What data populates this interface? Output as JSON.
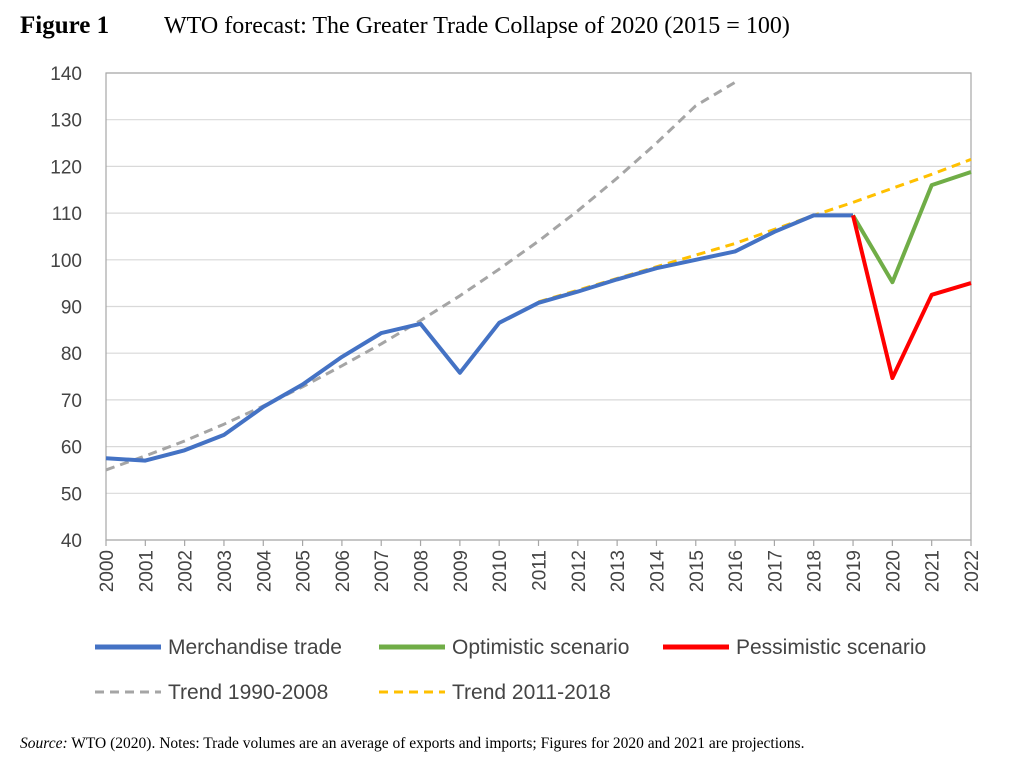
{
  "figure": {
    "label": "Figure 1",
    "title": "WTO forecast: The Greater Trade Collapse of 2020 (2015 = 100)"
  },
  "source": {
    "label": "Source:",
    "text": " WTO (2020). Notes: Trade volumes are an average of exports and imports; Figures for 2020 and 2021 are projections."
  },
  "chart_data": {
    "type": "line",
    "title": "WTO forecast: The Greater Trade Collapse of 2020 (2015 = 100)",
    "xlabel": "",
    "ylabel": "",
    "x": [
      "2000",
      "2001",
      "2002",
      "2003",
      "2004",
      "2005",
      "2006",
      "2007",
      "2008",
      "2009",
      "2010",
      "2011",
      "2012",
      "2013",
      "2014",
      "2015",
      "2016",
      "2017",
      "2018",
      "2019",
      "2020",
      "2021",
      "2022"
    ],
    "ylim": [
      40,
      140
    ],
    "yticks": [
      40,
      50,
      60,
      70,
      80,
      90,
      100,
      110,
      120,
      130,
      140
    ],
    "grid": true,
    "legend_position": "bottom",
    "series": [
      {
        "name": "Merchandise trade",
        "color": "#4472C4",
        "style": "solid",
        "points": [
          [
            2000,
            57.5
          ],
          [
            2001,
            57
          ],
          [
            2002,
            59.2
          ],
          [
            2003,
            62.5
          ],
          [
            2004,
            68.5
          ],
          [
            2005,
            73.3
          ],
          [
            2006,
            79.2
          ],
          [
            2007,
            84.3
          ],
          [
            2008,
            86.3
          ],
          [
            2009,
            75.8
          ],
          [
            2010,
            86.5
          ],
          [
            2011,
            90.8
          ],
          [
            2012,
            93.2
          ],
          [
            2013,
            95.8
          ],
          [
            2014,
            98.2
          ],
          [
            2015,
            100
          ],
          [
            2016,
            101.8
          ],
          [
            2017,
            106
          ],
          [
            2018,
            109.5
          ],
          [
            2019,
            109.5
          ]
        ]
      },
      {
        "name": "Optimistic scenario",
        "color": "#70AD47",
        "style": "solid",
        "points": [
          [
            2019,
            109.5
          ],
          [
            2020,
            95.2
          ],
          [
            2021,
            116
          ],
          [
            2022,
            118.8
          ]
        ]
      },
      {
        "name": "Pessimistic scenario",
        "color": "#FF0000",
        "style": "solid",
        "points": [
          [
            2019,
            109.5
          ],
          [
            2020,
            74.7
          ],
          [
            2021,
            92.5
          ],
          [
            2022,
            95
          ]
        ]
      },
      {
        "name": "Trend 1990-2008",
        "color": "#A5A5A5",
        "style": "dashed",
        "points": [
          [
            2000,
            55
          ],
          [
            2001,
            58
          ],
          [
            2002,
            61.2
          ],
          [
            2003,
            64.8
          ],
          [
            2004,
            68.7
          ],
          [
            2005,
            72.8
          ],
          [
            2006,
            77.3
          ],
          [
            2007,
            82
          ],
          [
            2008,
            87
          ],
          [
            2009,
            92.3
          ],
          [
            2010,
            98
          ],
          [
            2011,
            104
          ],
          [
            2012,
            110.5
          ],
          [
            2013,
            117.5
          ],
          [
            2014,
            125
          ],
          [
            2015,
            133
          ],
          [
            2016,
            138
          ]
        ]
      },
      {
        "name": "Trend 2011-2018",
        "color": "#FFC000",
        "style": "dashed",
        "points": [
          [
            2011,
            91
          ],
          [
            2012,
            93.5
          ],
          [
            2013,
            96
          ],
          [
            2014,
            98.5
          ],
          [
            2015,
            101
          ],
          [
            2016,
            103.5
          ],
          [
            2017,
            106.5
          ],
          [
            2018,
            109.5
          ],
          [
            2019,
            112.3
          ],
          [
            2020,
            115.3
          ],
          [
            2021,
            118.3
          ],
          [
            2022,
            121.5
          ]
        ]
      }
    ],
    "legend_rows": [
      [
        "Merchandise trade",
        "Optimistic scenario",
        "Pessimistic scenario"
      ],
      [
        "Trend 1990-2008",
        "Trend 2011-2018"
      ]
    ]
  }
}
